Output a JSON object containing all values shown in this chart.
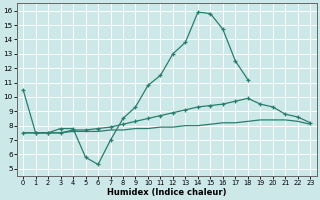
{
  "xlabel": "Humidex (Indice chaleur)",
  "bg_color": "#cce8e8",
  "grid_color": "#ffffff",
  "line_color": "#2a7d6e",
  "xlim": [
    -0.5,
    23.5
  ],
  "ylim": [
    4.5,
    16.5
  ],
  "xticks": [
    0,
    1,
    2,
    3,
    4,
    5,
    6,
    7,
    8,
    9,
    10,
    11,
    12,
    13,
    14,
    15,
    16,
    17,
    18,
    19,
    20,
    21,
    22,
    23
  ],
  "yticks": [
    5,
    6,
    7,
    8,
    9,
    10,
    11,
    12,
    13,
    14,
    15,
    16
  ],
  "line1_x": [
    0,
    1,
    2,
    3,
    4,
    5,
    6,
    7,
    8,
    9,
    10,
    11,
    12,
    13,
    14,
    15,
    16,
    17,
    18
  ],
  "line1_y": [
    10.5,
    7.5,
    7.5,
    7.8,
    7.8,
    5.8,
    5.3,
    7.0,
    8.5,
    9.3,
    10.8,
    11.5,
    13.0,
    13.8,
    15.9,
    15.8,
    14.7,
    12.5,
    11.2
  ],
  "line2_x": [
    0,
    1,
    2,
    3,
    4,
    5,
    6,
    7,
    8,
    9,
    10,
    11,
    12,
    13,
    14,
    15,
    16,
    17,
    18,
    19,
    20,
    21,
    22,
    23
  ],
  "line2_y": [
    7.5,
    7.5,
    7.5,
    7.5,
    7.7,
    7.7,
    7.8,
    7.9,
    8.1,
    8.3,
    8.5,
    8.7,
    8.9,
    9.1,
    9.3,
    9.4,
    9.5,
    9.7,
    9.9,
    9.5,
    9.3,
    8.8,
    8.6,
    8.2
  ],
  "line3_x": [
    0,
    1,
    2,
    3,
    4,
    5,
    6,
    7,
    8,
    9,
    10,
    11,
    12,
    13,
    14,
    15,
    16,
    17,
    18,
    19,
    20,
    21,
    22,
    23
  ],
  "line3_y": [
    7.5,
    7.5,
    7.5,
    7.5,
    7.6,
    7.6,
    7.6,
    7.7,
    7.7,
    7.8,
    7.8,
    7.9,
    7.9,
    8.0,
    8.0,
    8.1,
    8.2,
    8.2,
    8.3,
    8.4,
    8.4,
    8.4,
    8.3,
    8.1
  ]
}
